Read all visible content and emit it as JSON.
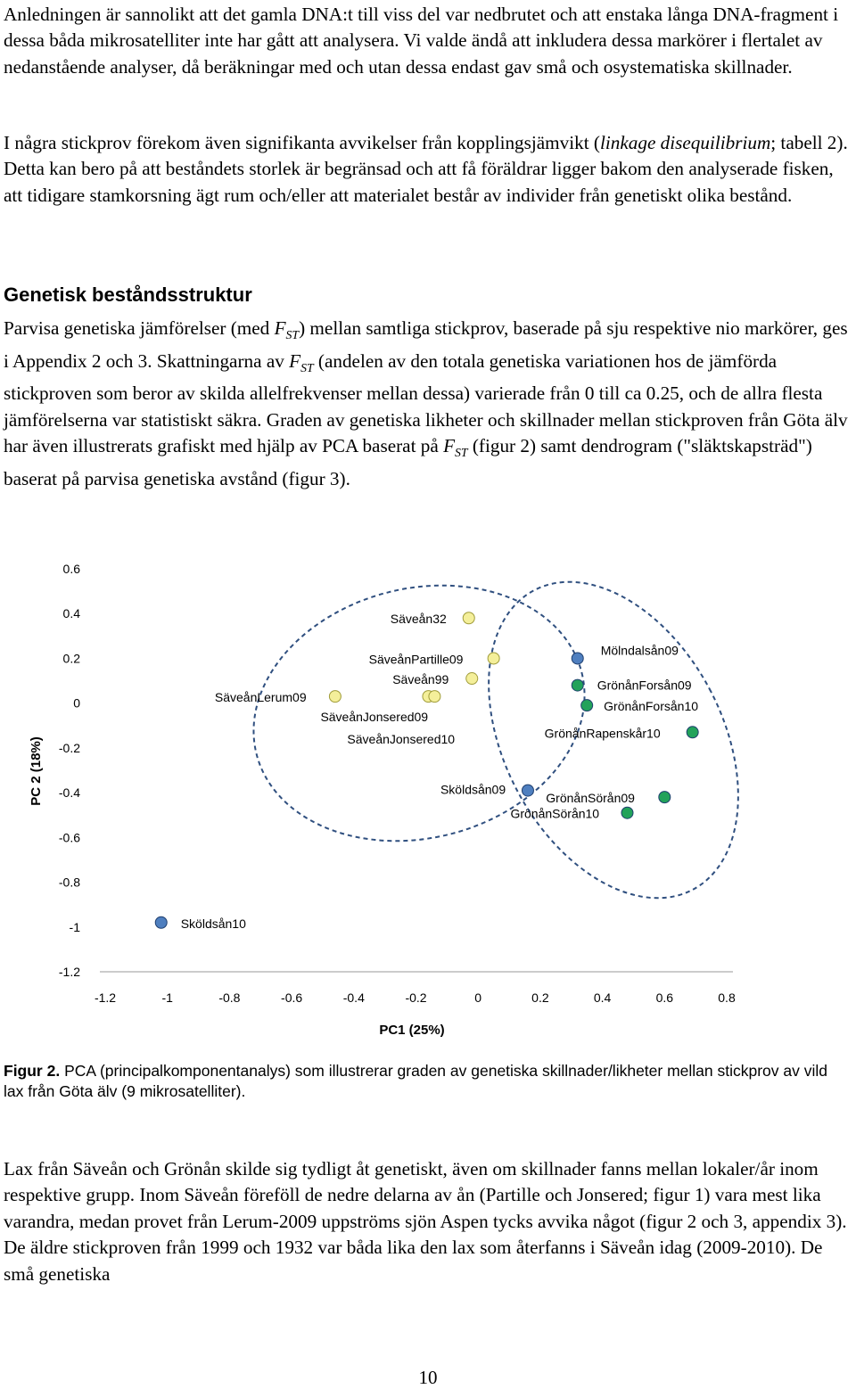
{
  "paragraphs": {
    "p1": "Anledningen är sannolikt att det gamla DNA:t till viss del var nedbrutet och att enstaka långa DNA-fragment i dessa båda mikrosatelliter inte har gått att analysera. Vi valde ändå att inkludera dessa markörer i flertalet av nedanstående analyser, då beräkningar med och utan dessa endast gav små och osystematiska skillnader.",
    "p2_a": "I några stickprov förekom även signifikanta avvikelser från kopplingsjämvikt (",
    "p2_italic": "linkage disequilibrium",
    "p2_b": "; tabell 2). Detta kan bero på att beståndets storlek är begränsad och att få föräldrar ligger bakom den analyserade fisken, att tidigare stamkorsning ägt rum och/eller att materialet består av individer från genetiskt olika bestånd.",
    "p3_a": "Parvisa genetiska jämförelser (med ",
    "p3_b": ") mellan samtliga stickprov, baserade på sju respektive nio markörer, ges i Appendix 2 och 3. Skattningarna av ",
    "p3_c": " (andelen av den totala genetiska variationen hos de jämförda stickproven som beror av skilda allelfrekvenser mellan dessa) varierade från 0 till ca 0.25, och de allra flesta jämförelserna var statistiskt säkra. Graden av genetiska likheter och skillnader mellan stickproven från Göta älv har även illustrerats grafiskt med hjälp av PCA baserat på ",
    "p3_d": " (figur 2) samt dendrogram (\"släktskapsträd\") baserat på parvisa genetiska avstånd (figur 3).",
    "p4": "Lax från Säveån och Grönån skilde sig tydligt åt genetiskt, även om skillnader fanns mellan lokaler/år inom respektive grupp. Inom Säveån föreföll de nedre delarna av ån (Partille och Jonsered; figur 1) vara mest lika varandra, medan provet från Lerum-2009 uppströms sjön Aspen tycks avvika något (figur 2 och 3, appendix 3). De äldre stickproven från 1999 och 1932 var båda lika den lax som återfanns i Säveån idag (2009-2010). De små genetiska"
  },
  "fst": {
    "f": "F",
    "sub": "ST"
  },
  "heading": "Genetisk beståndsstruktur",
  "caption": {
    "label": "Figur 2.",
    "text": " PCA (principalkomponentanalys) som illustrerar graden av genetiska skillnader/likheter mellan stickprov av vild lax från Göta älv (9 mikrosatelliter)."
  },
  "page_number": "10",
  "colors": {
    "saevean": "#f4ef9a",
    "gronan": "#22a25a",
    "other": "#4f7fbf",
    "ellipse": "#2f4f7f"
  },
  "chart_data": {
    "type": "scatter",
    "xlabel": "PC1 (25%)",
    "ylabel": "PC 2 (18%)",
    "xlim": [
      -1.2,
      0.8
    ],
    "ylim": [
      -1.2,
      0.6
    ],
    "xticks": [
      "-1.2",
      "-1",
      "-0.8",
      "-0.6",
      "-0.4",
      "-0.2",
      "0",
      "0.2",
      "0.4",
      "0.6",
      "0.8"
    ],
    "yticks": [
      "0.6",
      "0.4",
      "0.2",
      "0",
      "-0.2",
      "-0.4",
      "-0.6",
      "-0.8",
      "-1",
      "-1.2"
    ],
    "grid": false,
    "legend": "none",
    "points": [
      {
        "label": "Säveån32",
        "x": -0.03,
        "y": 0.38,
        "group": "saevean"
      },
      {
        "label": "SäveånPartille09",
        "x": 0.05,
        "y": 0.2,
        "group": "saevean"
      },
      {
        "label": "Säveån99",
        "x": -0.02,
        "y": 0.11,
        "group": "saevean"
      },
      {
        "label": "SäveånLerum09",
        "x": -0.46,
        "y": 0.03,
        "group": "saevean"
      },
      {
        "label": "SäveånJonsered09",
        "x": -0.16,
        "y": 0.03,
        "group": "saevean"
      },
      {
        "label": "SäveånJonsered10",
        "x": -0.14,
        "y": 0.03,
        "group": "saevean"
      },
      {
        "label": "Mölndalsån09",
        "x": 0.32,
        "y": 0.2,
        "group": "other"
      },
      {
        "label": "GrönånForsån09",
        "x": 0.32,
        "y": 0.08,
        "group": "gronan"
      },
      {
        "label": "GrönånForsån10",
        "x": 0.35,
        "y": -0.01,
        "group": "gronan"
      },
      {
        "label": "GrönånRapenskår10",
        "x": 0.69,
        "y": -0.13,
        "group": "gronan"
      },
      {
        "label": "Sköldsån09",
        "x": 0.16,
        "y": -0.39,
        "group": "other"
      },
      {
        "label": "GrönånSörån09",
        "x": 0.6,
        "y": -0.42,
        "group": "gronan"
      },
      {
        "label": "GrönånSörån10",
        "x": 0.48,
        "y": -0.49,
        "group": "gronan"
      },
      {
        "label": "Sköldsån10",
        "x": -1.02,
        "y": -0.98,
        "group": "other"
      }
    ]
  }
}
